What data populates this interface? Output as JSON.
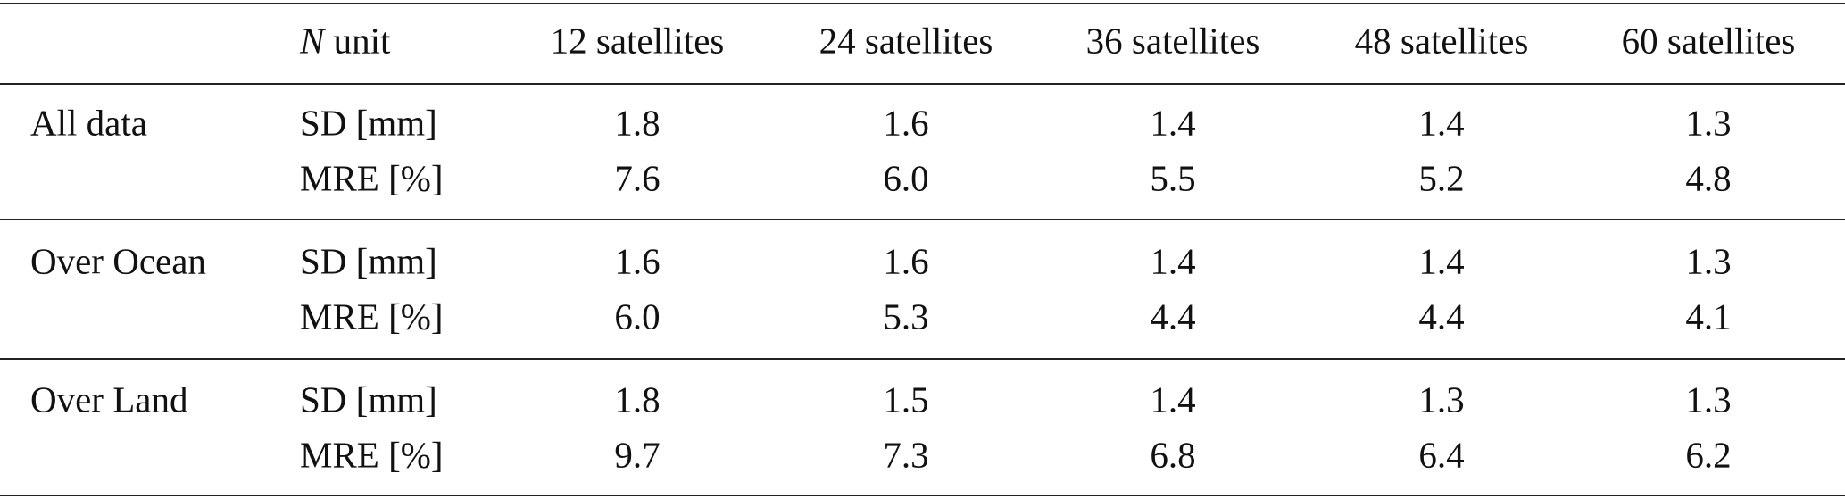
{
  "table": {
    "unit_header": {
      "var": "N",
      "text": "unit"
    },
    "columns": [
      "12 satellites",
      "24 satellites",
      "36 satellites",
      "48 satellites",
      "60 satellites"
    ],
    "groups": [
      {
        "name": "All data",
        "rows": [
          {
            "metric": "SD [mm]",
            "values": [
              "1.8",
              "1.6",
              "1.4",
              "1.4",
              "1.3"
            ]
          },
          {
            "metric": "MRE [%]",
            "values": [
              "7.6",
              "6.0",
              "5.5",
              "5.2",
              "4.8"
            ]
          }
        ]
      },
      {
        "name": "Over Ocean",
        "rows": [
          {
            "metric": "SD [mm]",
            "values": [
              "1.6",
              "1.6",
              "1.4",
              "1.4",
              "1.3"
            ]
          },
          {
            "metric": "MRE [%]",
            "values": [
              "6.0",
              "5.3",
              "4.4",
              "4.4",
              "4.1"
            ]
          }
        ]
      },
      {
        "name": "Over Land",
        "rows": [
          {
            "metric": "SD [mm]",
            "values": [
              "1.8",
              "1.5",
              "1.4",
              "1.3",
              "1.3"
            ]
          },
          {
            "metric": "MRE [%]",
            "values": [
              "9.7",
              "7.3",
              "6.8",
              "6.4",
              "6.2"
            ]
          }
        ]
      }
    ]
  }
}
